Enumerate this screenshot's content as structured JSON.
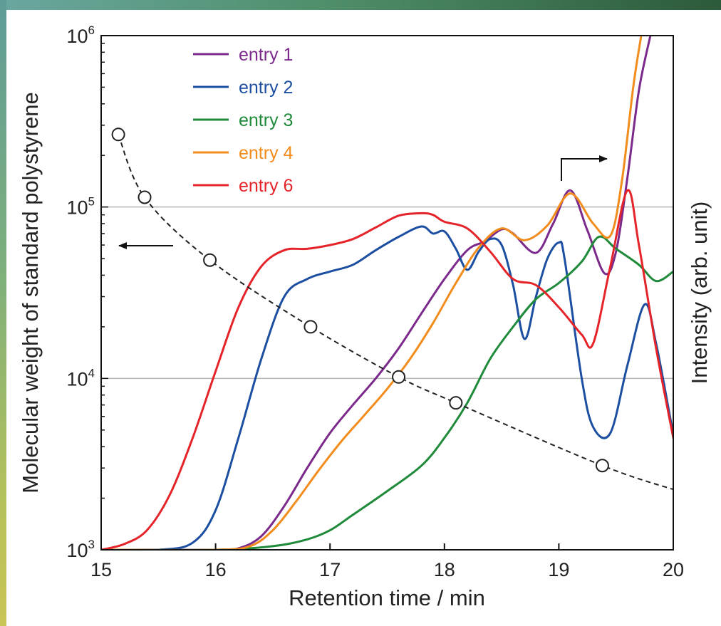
{
  "chart_data": {
    "type": "line",
    "xlabel": "Retention time / min",
    "ylabel": "Molecular weight of standard polystyrene",
    "ylabel_right": "Intensity (arb. unit)",
    "xlim": [
      15,
      20
    ],
    "ylim": [
      1000,
      1000000
    ],
    "yscale": "log",
    "x_ticks": [
      "15",
      "16",
      "17",
      "18",
      "19",
      "20"
    ],
    "y_ticks": [
      {
        "base": "10",
        "exp": "3"
      },
      {
        "base": "10",
        "exp": "4"
      },
      {
        "base": "10",
        "exp": "5"
      },
      {
        "base": "10",
        "exp": "6"
      }
    ],
    "grid": "horizontal at 10^4 and 10^5",
    "legend_position": "top-left",
    "calibration": {
      "style": "dashed black with open circles",
      "axis": "left",
      "points": [
        [
          15.15,
          265000
        ],
        [
          15.38,
          114000
        ],
        [
          15.95,
          49000
        ],
        [
          16.83,
          20000
        ],
        [
          17.6,
          10200
        ],
        [
          18.1,
          7200
        ],
        [
          19.38,
          3100
        ]
      ],
      "curve_end": [
        20.0,
        2250
      ]
    },
    "series": [
      {
        "name": "entry 1",
        "color": "#7b2a8c",
        "axis": "right",
        "x": [
          15.0,
          15.5,
          16.0,
          16.2,
          16.4,
          16.6,
          16.8,
          17.0,
          17.2,
          17.4,
          17.6,
          17.8,
          18.0,
          18.2,
          18.35,
          18.5,
          18.6,
          18.8,
          18.95,
          19.1,
          19.25,
          19.4,
          19.5,
          19.6,
          19.7,
          19.8
        ],
        "y": [
          1000,
          1000,
          1000,
          1020,
          1200,
          1800,
          3000,
          4800,
          7000,
          10000,
          15000,
          24000,
          38000,
          56000,
          63000,
          74000,
          70000,
          54000,
          80000,
          125000,
          73000,
          41000,
          55000,
          150000,
          480000,
          1000000
        ]
      },
      {
        "name": "entry 2",
        "color": "#1c4fa1",
        "axis": "right",
        "x": [
          15.0,
          15.5,
          15.8,
          16.0,
          16.2,
          16.4,
          16.6,
          16.8,
          17.0,
          17.2,
          17.4,
          17.6,
          17.8,
          17.9,
          18.0,
          18.1,
          18.2,
          18.3,
          18.4,
          18.5,
          18.6,
          18.7,
          18.8,
          18.9,
          19.0,
          19.05,
          19.2,
          19.3,
          19.45,
          19.6,
          19.75,
          19.85,
          20.0
        ],
        "y": [
          1000,
          1000,
          1100,
          1700,
          4500,
          13000,
          30000,
          38000,
          42000,
          46000,
          56000,
          67000,
          77000,
          70000,
          72000,
          57000,
          43000,
          55000,
          65000,
          60000,
          35000,
          17000,
          30000,
          50000,
          62000,
          50000,
          10000,
          5200,
          4800,
          12000,
          27000,
          16000,
          4700
        ]
      },
      {
        "name": "entry 3",
        "color": "#1e8a3a",
        "axis": "right",
        "x": [
          15.0,
          16.0,
          16.5,
          16.8,
          17.0,
          17.2,
          17.5,
          17.8,
          18.0,
          18.2,
          18.4,
          18.6,
          18.8,
          19.0,
          19.2,
          19.35,
          19.5,
          19.7,
          19.85,
          20.0
        ],
        "y": [
          1000,
          1000,
          1050,
          1150,
          1300,
          1600,
          2200,
          3100,
          4500,
          7200,
          13000,
          20000,
          29000,
          36000,
          48000,
          67000,
          57000,
          46000,
          37000,
          42000
        ]
      },
      {
        "name": "entry 4",
        "color": "#f28c1c",
        "axis": "right",
        "x": [
          15.0,
          16.0,
          16.3,
          16.5,
          16.7,
          16.9,
          17.1,
          17.3,
          17.5,
          17.7,
          17.9,
          18.1,
          18.3,
          18.5,
          18.7,
          18.9,
          19.1,
          19.3,
          19.45,
          19.55,
          19.65,
          19.72
        ],
        "y": [
          1000,
          1000,
          1050,
          1300,
          1900,
          2900,
          4300,
          6100,
          8700,
          13000,
          21000,
          36000,
          58000,
          75000,
          64000,
          78000,
          120000,
          80000,
          68000,
          140000,
          500000,
          1000000
        ]
      },
      {
        "name": "entry 6",
        "color": "#e5242a",
        "axis": "right",
        "x": [
          15.0,
          15.2,
          15.4,
          15.6,
          15.8,
          16.0,
          16.2,
          16.4,
          16.6,
          16.8,
          17.0,
          17.2,
          17.4,
          17.6,
          17.8,
          17.9,
          18.0,
          18.2,
          18.4,
          18.6,
          18.8,
          19.0,
          19.2,
          19.3,
          19.45,
          19.6,
          19.7,
          19.85,
          20.0
        ],
        "y": [
          1000,
          1080,
          1300,
          2100,
          4500,
          11000,
          26000,
          45000,
          56000,
          57000,
          60000,
          65000,
          76000,
          89000,
          92000,
          90000,
          82000,
          75000,
          55000,
          38000,
          35000,
          26000,
          18000,
          16000,
          45000,
          125000,
          60000,
          15000,
          4500
        ]
      }
    ],
    "arrows": [
      {
        "direction": "left",
        "meaning": "calibration curve uses left axis"
      },
      {
        "direction": "right",
        "meaning": "chromatograms use right axis"
      }
    ]
  }
}
